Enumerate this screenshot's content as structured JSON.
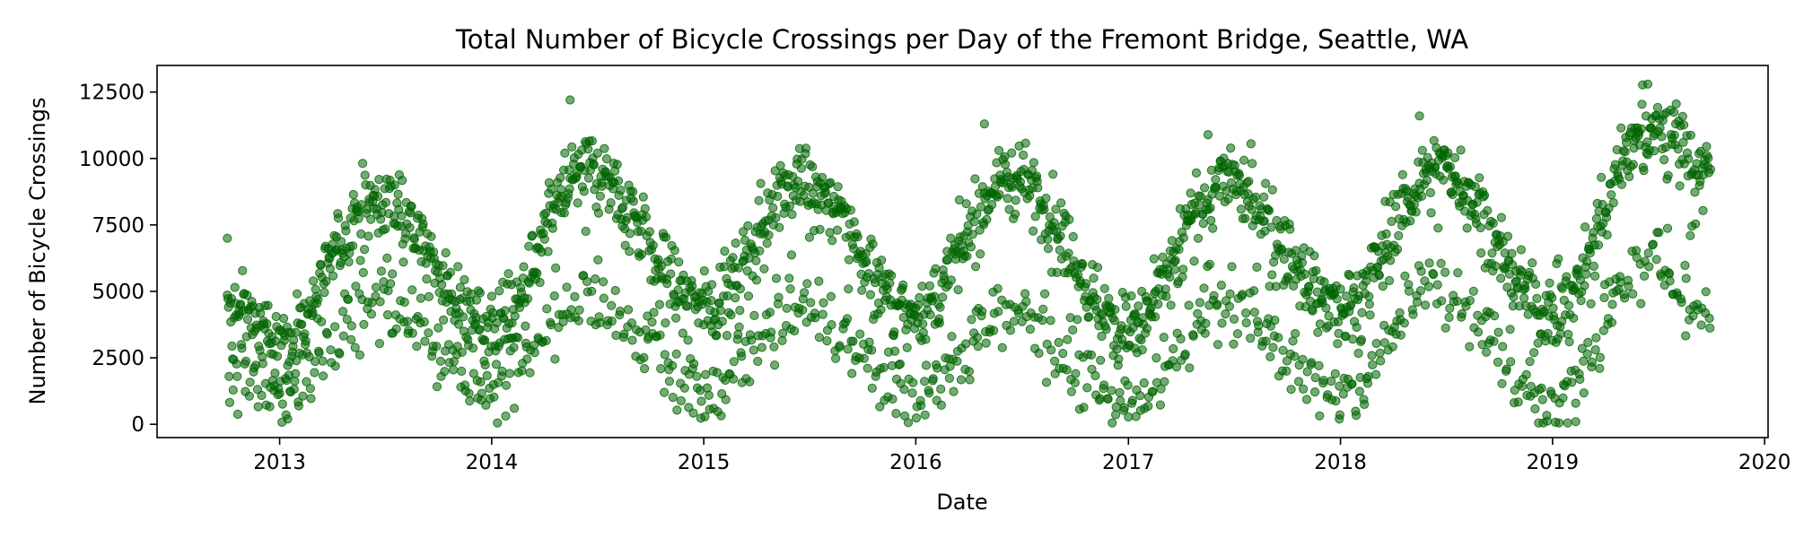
{
  "chart_data": {
    "type": "scatter",
    "title": "Total Number of Bicycle Crossings per Day of the Fremont Bridge, Seattle, WA",
    "xlabel": "Date",
    "ylabel": "Number of Bicycle Crossings",
    "xlim": [
      "2012-06-04",
      "2020-01-07"
    ],
    "ylim": [
      -500,
      13500
    ],
    "x_ticks": [
      "2013",
      "2014",
      "2015",
      "2016",
      "2017",
      "2018",
      "2019",
      "2020"
    ],
    "y_ticks": [
      "0",
      "2500",
      "5000",
      "7500",
      "10000",
      "12500"
    ],
    "grid": false,
    "legend": "none",
    "series": [
      {
        "marker_color": "#006400",
        "date_range": [
          "2012-10-03",
          "2019-09-30"
        ],
        "seasonal_pattern": {
          "weekday_level": [
            {
              "date": "2012-10-15",
              "value": 4200
            },
            {
              "date": "2013-01-01",
              "value": 3100
            },
            {
              "date": "2013-06-15",
              "value": 8500
            },
            {
              "date": "2014-01-01",
              "value": 3800
            },
            {
              "date": "2014-06-15",
              "value": 9600
            },
            {
              "date": "2015-01-01",
              "value": 4400
            },
            {
              "date": "2015-06-15",
              "value": 9200
            },
            {
              "date": "2016-01-01",
              "value": 4300
            },
            {
              "date": "2016-06-15",
              "value": 9300
            },
            {
              "date": "2017-01-01",
              "value": 3600
            },
            {
              "date": "2017-06-15",
              "value": 9200
            },
            {
              "date": "2018-01-01",
              "value": 4400
            },
            {
              "date": "2018-06-15",
              "value": 9800
            },
            {
              "date": "2019-01-01",
              "value": 4200
            },
            {
              "date": "2019-06-15",
              "value": 11200
            },
            {
              "date": "2019-09-30",
              "value": 9600
            }
          ],
          "weekend_level": [
            {
              "date": "2012-10-15",
              "value": 1800
            },
            {
              "date": "2013-01-01",
              "value": 1000
            },
            {
              "date": "2013-06-15",
              "value": 4500
            },
            {
              "date": "2014-01-01",
              "value": 1300
            },
            {
              "date": "2014-06-15",
              "value": 4600
            },
            {
              "date": "2015-01-01",
              "value": 1200
            },
            {
              "date": "2015-06-15",
              "value": 4200
            },
            {
              "date": "2016-01-01",
              "value": 1000
            },
            {
              "date": "2016-06-15",
              "value": 4200
            },
            {
              "date": "2017-01-01",
              "value": 800
            },
            {
              "date": "2017-06-15",
              "value": 4300
            },
            {
              "date": "2018-01-01",
              "value": 1300
            },
            {
              "date": "2018-06-15",
              "value": 5000
            },
            {
              "date": "2019-01-01",
              "value": 800
            },
            {
              "date": "2019-06-15",
              "value": 6200
            },
            {
              "date": "2019-09-30",
              "value": 4000
            }
          ]
        },
        "notable_points": [
          {
            "date": "2012-10-03",
            "value": 7000
          },
          {
            "date": "2014-05-16",
            "value": 12200
          },
          {
            "date": "2016-04-28",
            "value": 11300
          },
          {
            "date": "2017-05-18",
            "value": 10900
          },
          {
            "date": "2018-05-17",
            "value": 11600
          },
          {
            "date": "2019-06-14",
            "value": 12800
          },
          {
            "date": "2013-01-15",
            "value": 200
          },
          {
            "date": "2017-12-30",
            "value": 200
          },
          {
            "date": "2019-02-10",
            "value": 100
          }
        ]
      }
    ]
  }
}
